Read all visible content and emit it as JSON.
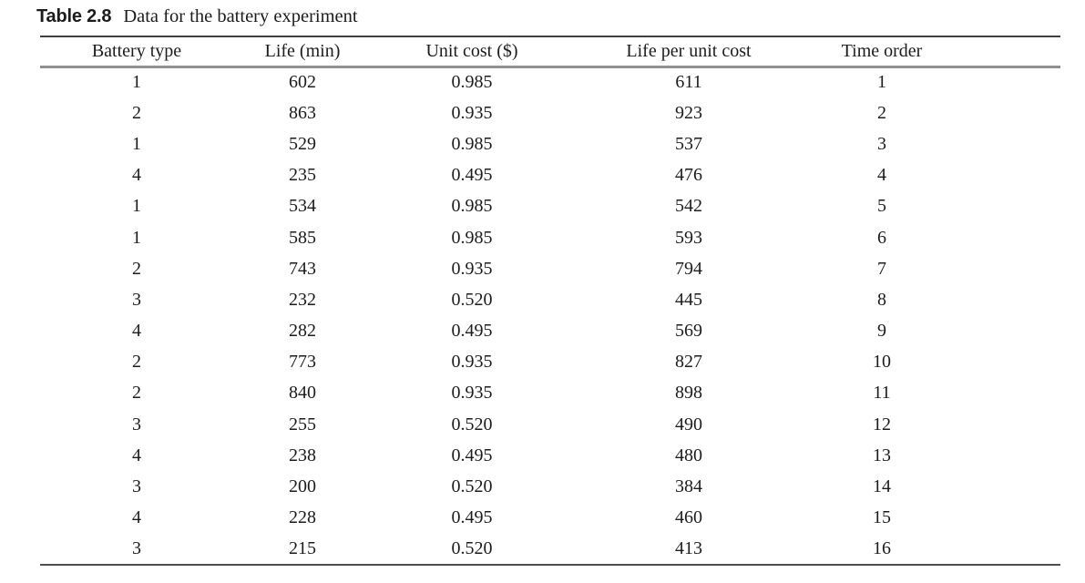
{
  "caption": {
    "label": "Table 2.8",
    "text": "Data for the battery experiment"
  },
  "chart_data": {
    "type": "table",
    "title": "Table 2.8  Data for the battery experiment",
    "columns": [
      "Battery type",
      "Life (min)",
      "Unit cost ($)",
      "Life per unit cost",
      "Time order"
    ],
    "rows": [
      [
        "1",
        "602",
        "0.985",
        "611",
        "1"
      ],
      [
        "2",
        "863",
        "0.935",
        "923",
        "2"
      ],
      [
        "1",
        "529",
        "0.985",
        "537",
        "3"
      ],
      [
        "4",
        "235",
        "0.495",
        "476",
        "4"
      ],
      [
        "1",
        "534",
        "0.985",
        "542",
        "5"
      ],
      [
        "1",
        "585",
        "0.985",
        "593",
        "6"
      ],
      [
        "2",
        "743",
        "0.935",
        "794",
        "7"
      ],
      [
        "3",
        "232",
        "0.520",
        "445",
        "8"
      ],
      [
        "4",
        "282",
        "0.495",
        "569",
        "9"
      ],
      [
        "2",
        "773",
        "0.935",
        "827",
        "10"
      ],
      [
        "2",
        "840",
        "0.935",
        "898",
        "11"
      ],
      [
        "3",
        "255",
        "0.520",
        "490",
        "12"
      ],
      [
        "4",
        "238",
        "0.495",
        "480",
        "13"
      ],
      [
        "3",
        "200",
        "0.520",
        "384",
        "14"
      ],
      [
        "4",
        "228",
        "0.495",
        "460",
        "15"
      ],
      [
        "3",
        "215",
        "0.520",
        "413",
        "16"
      ]
    ]
  },
  "colors": {
    "text": "#1c1c1c",
    "rule_top": "#414141",
    "rule_header": "#909090",
    "rule_bottom": "#4f4f4f",
    "background": "#ffffff"
  }
}
